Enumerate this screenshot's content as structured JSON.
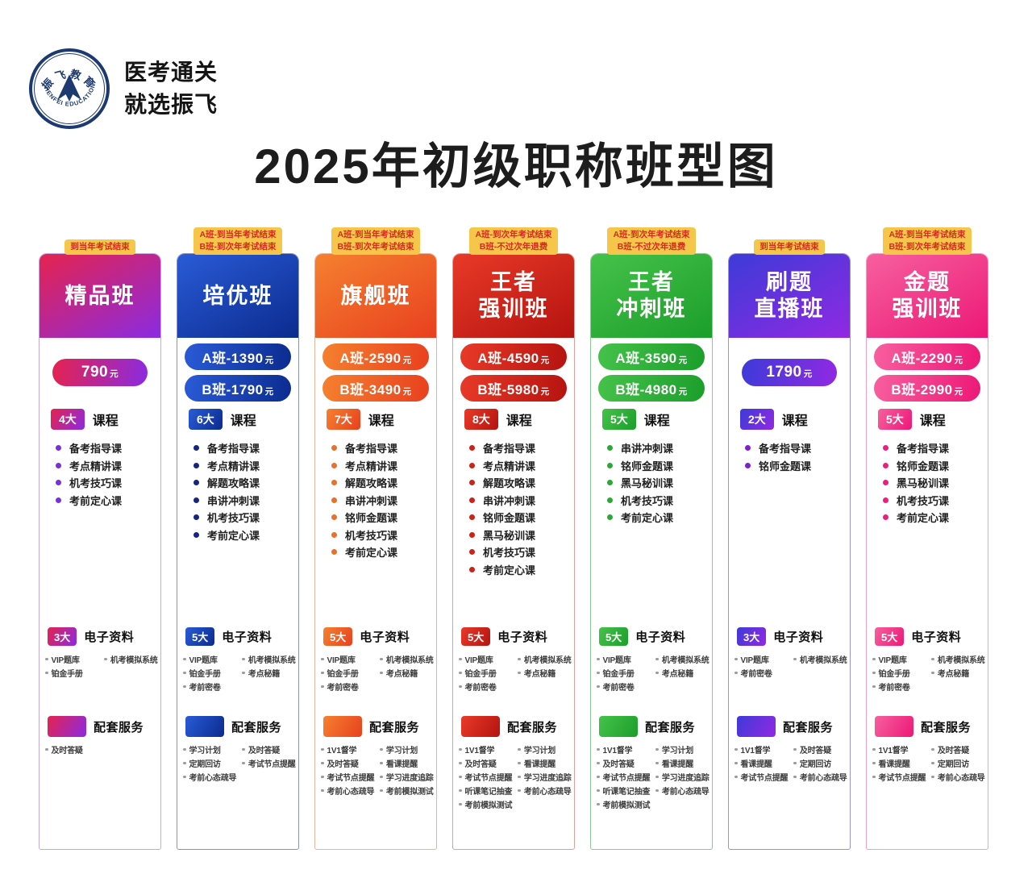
{
  "logo": {
    "name_zh": "振飞教育",
    "name_en": "ZHENFEI EDUCATION",
    "slogan_line1": "医考通关",
    "slogan_line2": "就选振飞"
  },
  "title": "2025年初级职称班型图",
  "columns": [
    {
      "badge": [
        "到当年考试结束"
      ],
      "title": [
        "精品班"
      ],
      "prices": [
        {
          "amount": "790",
          "unit": "元"
        }
      ],
      "courses_count": "4大",
      "courses_label": "课程",
      "courses": [
        "备考指导课",
        "考点精讲课",
        "机考技巧课",
        "考前定心课"
      ],
      "materials_count": "3大",
      "materials_label": "电子资料",
      "materials": [
        "VIP题库",
        "机考模拟系统",
        "铂金手册"
      ],
      "services_label": "配套服务",
      "services": [
        "及时答疑"
      ],
      "colors": {
        "g1": "#E5234E",
        "g2": "#8A2BE2",
        "bullet": "#7B2FD6",
        "border": "#C9A8E0"
      }
    },
    {
      "badge": [
        "A班-到当年考试结束",
        "B班-到次年考试结束"
      ],
      "title": [
        "培优班"
      ],
      "prices": [
        {
          "amount": "A班-1390",
          "unit": "元"
        },
        {
          "amount": "B班-1790",
          "unit": "元"
        }
      ],
      "courses_count": "6大",
      "courses_label": "课程",
      "courses": [
        "备考指导课",
        "考点精讲课",
        "解题攻略课",
        "串讲冲刺课",
        "机考技巧课",
        "考前定心课"
      ],
      "materials_count": "5大",
      "materials_label": "电子资料",
      "materials": [
        "VIP题库",
        "机考模拟系统",
        "铂金手册",
        "考点秘籍",
        "考前密卷"
      ],
      "services_label": "配套服务",
      "services": [
        "学习计划",
        "及时答疑",
        "定期回访",
        "考试节点提醒",
        "考前心态疏导"
      ],
      "colors": {
        "g1": "#2A5BD7",
        "g2": "#0B2B8E",
        "bullet": "#16257E",
        "border": "#8C93B8"
      }
    },
    {
      "badge": [
        "A班-到当年考试结束",
        "B班-到次年考试结束"
      ],
      "title": [
        "旗舰班"
      ],
      "prices": [
        {
          "amount": "A班-2590",
          "unit": "元"
        },
        {
          "amount": "B班-3490",
          "unit": "元"
        }
      ],
      "courses_count": "7大",
      "courses_label": "课程",
      "courses": [
        "备考指导课",
        "考点精讲课",
        "解题攻略课",
        "串讲冲刺课",
        "铭师金题课",
        "机考技巧课",
        "考前定心课"
      ],
      "materials_count": "5大",
      "materials_label": "电子资料",
      "materials": [
        "VIP题库",
        "机考模拟系统",
        "铂金手册",
        "考点秘籍",
        "考前密卷"
      ],
      "services_label": "配套服务",
      "services": [
        "1V1督学",
        "学习计划",
        "及时答疑",
        "看课提醒",
        "考试节点提醒",
        "学习进度追踪",
        "考前心态疏导",
        "考前模拟测试"
      ],
      "colors": {
        "g1": "#F5812F",
        "g2": "#E8401F",
        "bullet": "#E8722C",
        "border": "#E8B49A"
      }
    },
    {
      "badge": [
        "A班-到次年考试结束",
        "B班-不过次年退费"
      ],
      "title": [
        "王者",
        "强训班"
      ],
      "prices": [
        {
          "amount": "A班-4590",
          "unit": "元"
        },
        {
          "amount": "B班-5980",
          "unit": "元"
        }
      ],
      "courses_count": "8大",
      "courses_label": "课程",
      "courses": [
        "备考指导课",
        "考点精讲课",
        "解题攻略课",
        "串讲冲刺课",
        "铭师金题课",
        "黑马秘训课",
        "机考技巧课",
        "考前定心课"
      ],
      "materials_count": "5大",
      "materials_label": "电子资料",
      "materials": [
        "VIP题库",
        "机考模拟系统",
        "铂金手册",
        "考点秘籍",
        "考前密卷"
      ],
      "services_label": "配套服务",
      "services": [
        "1V1督学",
        "学习计划",
        "及时答疑",
        "看课提醒",
        "考试节点提醒",
        "学习进度追踪",
        "听课笔记抽查",
        "考前心态疏导",
        "考前模拟测试"
      ],
      "colors": {
        "g1": "#E83A28",
        "g2": "#B51310",
        "bullet": "#C8241A",
        "border": "#E0A098"
      }
    },
    {
      "badge": [
        "A班-到次年考试结束",
        "B班-不过次年退费"
      ],
      "title": [
        "王者",
        "冲刺班"
      ],
      "prices": [
        {
          "amount": "A班-3590",
          "unit": "元"
        },
        {
          "amount": "B班-4980",
          "unit": "元"
        }
      ],
      "courses_count": "5大",
      "courses_label": "课程",
      "courses": [
        "串讲冲刺课",
        "铭师金题课",
        "黑马秘训课",
        "机考技巧课",
        "考前定心课"
      ],
      "materials_count": "5大",
      "materials_label": "电子资料",
      "materials": [
        "VIP题库",
        "机考模拟系统",
        "铂金手册",
        "考点秘籍",
        "考前密卷"
      ],
      "services_label": "配套服务",
      "services": [
        "1V1督学",
        "学习计划",
        "及时答疑",
        "看课提醒",
        "考试节点提醒",
        "学习进度追踪",
        "听课笔记抽查",
        "考前心态疏导",
        "考前模拟测试"
      ],
      "colors": {
        "g1": "#45C24A",
        "g2": "#1C9E2B",
        "bullet": "#2BA836",
        "border": "#8FC897"
      }
    },
    {
      "badge": [
        "到当年考试结束"
      ],
      "title": [
        "刷题",
        "直播班"
      ],
      "prices": [
        {
          "amount": "1790",
          "unit": "元"
        }
      ],
      "courses_count": "2大",
      "courses_label": "课程",
      "courses": [
        "备考指导课",
        "铭师金题课"
      ],
      "materials_count": "3大",
      "materials_label": "电子资料",
      "materials": [
        "VIP题库",
        "机考模拟系统",
        "考前密卷"
      ],
      "services_label": "配套服务",
      "services": [
        "1V1督学",
        "及时答疑",
        "看课提醒",
        "定期回访",
        "考试节点提醒",
        "考前心态疏导"
      ],
      "colors": {
        "g1": "#3D3BD8",
        "g2": "#9129E2",
        "bullet": "#7B22CE",
        "border": "#9A95C8"
      }
    },
    {
      "badge": [
        "A班-到当年考试结束",
        "B班-到次年考试结束"
      ],
      "title": [
        "金题",
        "强训班"
      ],
      "prices": [
        {
          "amount": "A班-2290",
          "unit": "元"
        },
        {
          "amount": "B班-2990",
          "unit": "元"
        }
      ],
      "courses_count": "5大",
      "courses_label": "课程",
      "courses": [
        "备考指导课",
        "铭师金题课",
        "黑马秘训课",
        "机考技巧课",
        "考前定心课"
      ],
      "materials_count": "5大",
      "materials_label": "电子资料",
      "materials": [
        "VIP题库",
        "机考模拟系统",
        "铂金手册",
        "考点秘籍",
        "考前密卷"
      ],
      "services_label": "配套服务",
      "services": [
        "1V1督学",
        "及时答疑",
        "看课提醒",
        "定期回访",
        "考试节点提醒",
        "考前心态疏导"
      ],
      "colors": {
        "g1": "#F7609F",
        "g2": "#EC1876",
        "bullet": "#EA1F7E",
        "border": "#F0A0C4"
      }
    }
  ]
}
